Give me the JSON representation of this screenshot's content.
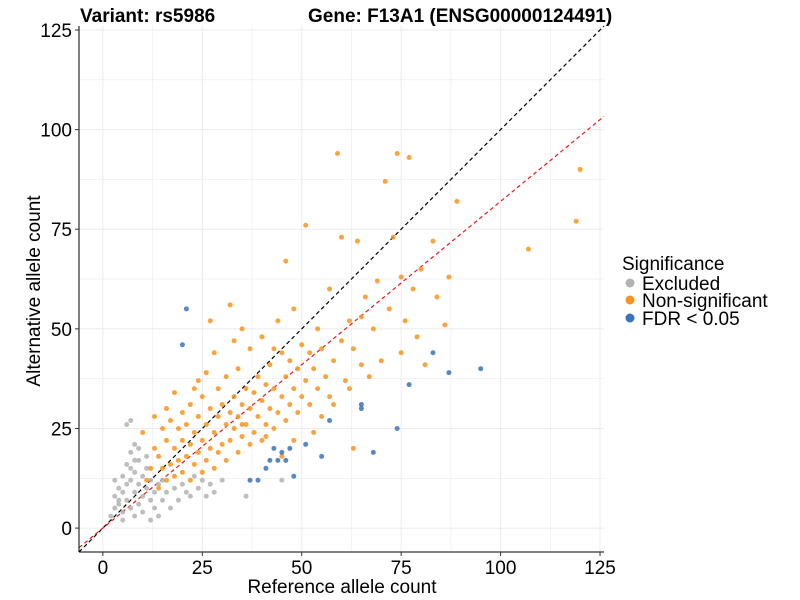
{
  "chart_data": {
    "type": "scatter",
    "title_left": "Variant: rs5986",
    "title_right": "Gene: F13A1 (ENSG00000124491)",
    "xlabel": "Reference allele count",
    "ylabel": "Alternative allele count",
    "xlim": [
      -6,
      126
    ],
    "ylim": [
      -6,
      126
    ],
    "xticks": [
      0,
      25,
      50,
      75,
      100,
      125
    ],
    "yticks": [
      0,
      25,
      50,
      75,
      100,
      125
    ],
    "grid": true,
    "legend": {
      "title": "Significance",
      "position": "right",
      "entries": [
        {
          "label": "Excluded",
          "color": "#b3b3b3"
        },
        {
          "label": "Non-significant",
          "color": "#f7941d"
        },
        {
          "label": "FDR < 0.05",
          "color": "#3b73b9"
        }
      ]
    },
    "reference_lines": [
      {
        "name": "identity",
        "slope": 1,
        "intercept": 0,
        "color": "#000000",
        "style": "dashed"
      },
      {
        "name": "fit",
        "slope": 0.82,
        "intercept": 0,
        "color": "#e41a1c",
        "style": "dashed"
      }
    ],
    "series": [
      {
        "name": "Excluded",
        "color": "#b3b3b3",
        "points": [
          [
            2,
            3
          ],
          [
            3,
            5
          ],
          [
            3,
            8
          ],
          [
            4,
            6
          ],
          [
            4,
            10
          ],
          [
            5,
            4
          ],
          [
            5,
            9
          ],
          [
            5,
            13
          ],
          [
            6,
            7
          ],
          [
            6,
            11
          ],
          [
            6,
            16
          ],
          [
            6,
            26
          ],
          [
            7,
            5
          ],
          [
            7,
            12
          ],
          [
            7,
            19
          ],
          [
            7,
            27
          ],
          [
            8,
            3
          ],
          [
            8,
            9
          ],
          [
            8,
            14
          ],
          [
            8,
            21
          ],
          [
            9,
            6
          ],
          [
            9,
            11
          ],
          [
            9,
            17
          ],
          [
            10,
            8
          ],
          [
            10,
            13
          ],
          [
            10,
            4
          ],
          [
            11,
            10
          ],
          [
            11,
            15
          ],
          [
            12,
            7
          ],
          [
            12,
            12
          ],
          [
            12,
            2
          ],
          [
            13,
            9
          ],
          [
            13,
            5
          ],
          [
            14,
            11
          ],
          [
            14,
            3
          ],
          [
            15,
            7
          ],
          [
            15,
            12
          ],
          [
            16,
            9
          ],
          [
            17,
            5
          ],
          [
            18,
            10
          ],
          [
            19,
            7
          ],
          [
            20,
            11
          ],
          [
            21,
            9
          ],
          [
            22,
            8
          ],
          [
            23,
            13
          ],
          [
            24,
            10
          ],
          [
            25,
            12
          ],
          [
            26,
            8
          ],
          [
            27,
            11
          ],
          [
            28,
            9
          ],
          [
            30,
            12
          ],
          [
            36,
            8
          ],
          [
            45,
            12
          ],
          [
            11,
            18
          ],
          [
            9,
            20
          ],
          [
            7,
            15
          ],
          [
            4,
            7
          ],
          [
            5,
            2
          ],
          [
            3,
            12
          ],
          [
            8,
            17
          ]
        ]
      },
      {
        "name": "Non-significant",
        "color": "#f7941d",
        "points": [
          [
            10,
            24
          ],
          [
            11,
            12
          ],
          [
            12,
            15
          ],
          [
            13,
            20
          ],
          [
            13,
            28
          ],
          [
            14,
            10
          ],
          [
            14,
            18
          ],
          [
            15,
            15
          ],
          [
            15,
            25
          ],
          [
            16,
            12
          ],
          [
            16,
            22
          ],
          [
            16,
            30
          ],
          [
            17,
            16
          ],
          [
            17,
            27
          ],
          [
            18,
            13
          ],
          [
            18,
            20
          ],
          [
            18,
            34
          ],
          [
            19,
            17
          ],
          [
            19,
            25
          ],
          [
            20,
            14
          ],
          [
            20,
            22
          ],
          [
            20,
            29
          ],
          [
            21,
            18
          ],
          [
            21,
            26
          ],
          [
            22,
            12
          ],
          [
            22,
            21
          ],
          [
            22,
            31
          ],
          [
            23,
            16
          ],
          [
            23,
            24
          ],
          [
            23,
            35
          ],
          [
            24,
            19
          ],
          [
            24,
            28
          ],
          [
            25,
            14
          ],
          [
            25,
            22
          ],
          [
            25,
            33
          ],
          [
            26,
            17
          ],
          [
            26,
            26
          ],
          [
            26,
            39
          ],
          [
            27,
            20
          ],
          [
            27,
            30
          ],
          [
            28,
            15
          ],
          [
            28,
            24
          ],
          [
            28,
            44
          ],
          [
            29,
            19
          ],
          [
            29,
            28
          ],
          [
            29,
            35
          ],
          [
            30,
            21
          ],
          [
            30,
            31
          ],
          [
            31,
            17
          ],
          [
            31,
            26
          ],
          [
            31,
            38
          ],
          [
            32,
            22
          ],
          [
            32,
            29
          ],
          [
            32,
            56
          ],
          [
            33,
            25
          ],
          [
            33,
            33
          ],
          [
            33,
            47
          ],
          [
            34,
            19
          ],
          [
            34,
            28
          ],
          [
            34,
            40
          ],
          [
            35,
            23
          ],
          [
            35,
            31
          ],
          [
            35,
            50
          ],
          [
            36,
            26
          ],
          [
            36,
            35
          ],
          [
            37,
            21
          ],
          [
            37,
            30
          ],
          [
            37,
            45
          ],
          [
            38,
            24
          ],
          [
            38,
            34
          ],
          [
            39,
            28
          ],
          [
            39,
            38
          ],
          [
            40,
            22
          ],
          [
            40,
            32
          ],
          [
            40,
            48
          ],
          [
            41,
            26
          ],
          [
            41,
            36
          ],
          [
            42,
            30
          ],
          [
            42,
            41
          ],
          [
            43,
            25
          ],
          [
            43,
            35
          ],
          [
            44,
            29
          ],
          [
            44,
            52
          ],
          [
            45,
            33
          ],
          [
            45,
            44
          ],
          [
            46,
            27
          ],
          [
            46,
            38
          ],
          [
            46,
            67
          ],
          [
            47,
            31
          ],
          [
            47,
            42
          ],
          [
            48,
            35
          ],
          [
            48,
            55
          ],
          [
            49,
            29
          ],
          [
            49,
            40
          ],
          [
            50,
            33
          ],
          [
            50,
            46
          ],
          [
            51,
            37
          ],
          [
            51,
            76
          ],
          [
            52,
            31
          ],
          [
            52,
            44
          ],
          [
            53,
            40
          ],
          [
            54,
            35
          ],
          [
            54,
            50
          ],
          [
            55,
            28
          ],
          [
            55,
            45
          ],
          [
            56,
            38
          ],
          [
            57,
            33
          ],
          [
            57,
            60
          ],
          [
            58,
            42
          ],
          [
            59,
            94
          ],
          [
            60,
            47
          ],
          [
            60,
            73
          ],
          [
            61,
            37
          ],
          [
            62,
            52
          ],
          [
            62,
            35
          ],
          [
            63,
            45
          ],
          [
            64,
            72
          ],
          [
            65,
            41
          ],
          [
            65,
            53
          ],
          [
            66,
            58
          ],
          [
            67,
            38
          ],
          [
            68,
            50
          ],
          [
            69,
            62
          ],
          [
            70,
            42
          ],
          [
            71,
            87
          ],
          [
            72,
            55
          ],
          [
            73,
            73
          ],
          [
            74,
            94
          ],
          [
            75,
            44
          ],
          [
            75,
            63
          ],
          [
            76,
            52
          ],
          [
            77,
            93
          ],
          [
            78,
            60
          ],
          [
            79,
            48
          ],
          [
            80,
            65
          ],
          [
            81,
            41
          ],
          [
            83,
            72
          ],
          [
            84,
            58
          ],
          [
            86,
            51
          ],
          [
            87,
            63
          ],
          [
            89,
            82
          ],
          [
            107,
            70
          ],
          [
            119,
            77
          ],
          [
            120,
            90
          ],
          [
            24,
            37
          ],
          [
            27,
            52
          ],
          [
            35,
            26
          ],
          [
            41,
            23
          ],
          [
            43,
            45
          ],
          [
            53,
            24
          ],
          [
            58,
            31
          ],
          [
            63,
            20
          ],
          [
            45,
            18
          ],
          [
            48,
            22
          ]
        ]
      },
      {
        "name": "FDR < 0.05",
        "color": "#3b73b9",
        "points": [
          [
            20,
            46
          ],
          [
            21,
            55
          ],
          [
            37,
            12
          ],
          [
            39,
            12
          ],
          [
            41,
            15
          ],
          [
            42,
            17
          ],
          [
            43,
            20
          ],
          [
            44,
            17
          ],
          [
            45,
            19
          ],
          [
            46,
            17
          ],
          [
            47,
            20
          ],
          [
            48,
            13
          ],
          [
            51,
            21
          ],
          [
            55,
            18
          ],
          [
            57,
            27
          ],
          [
            65,
            30
          ],
          [
            65,
            31
          ],
          [
            68,
            19
          ],
          [
            74,
            25
          ],
          [
            77,
            36
          ],
          [
            83,
            44
          ],
          [
            87,
            39
          ],
          [
            95,
            40
          ]
        ]
      }
    ]
  }
}
